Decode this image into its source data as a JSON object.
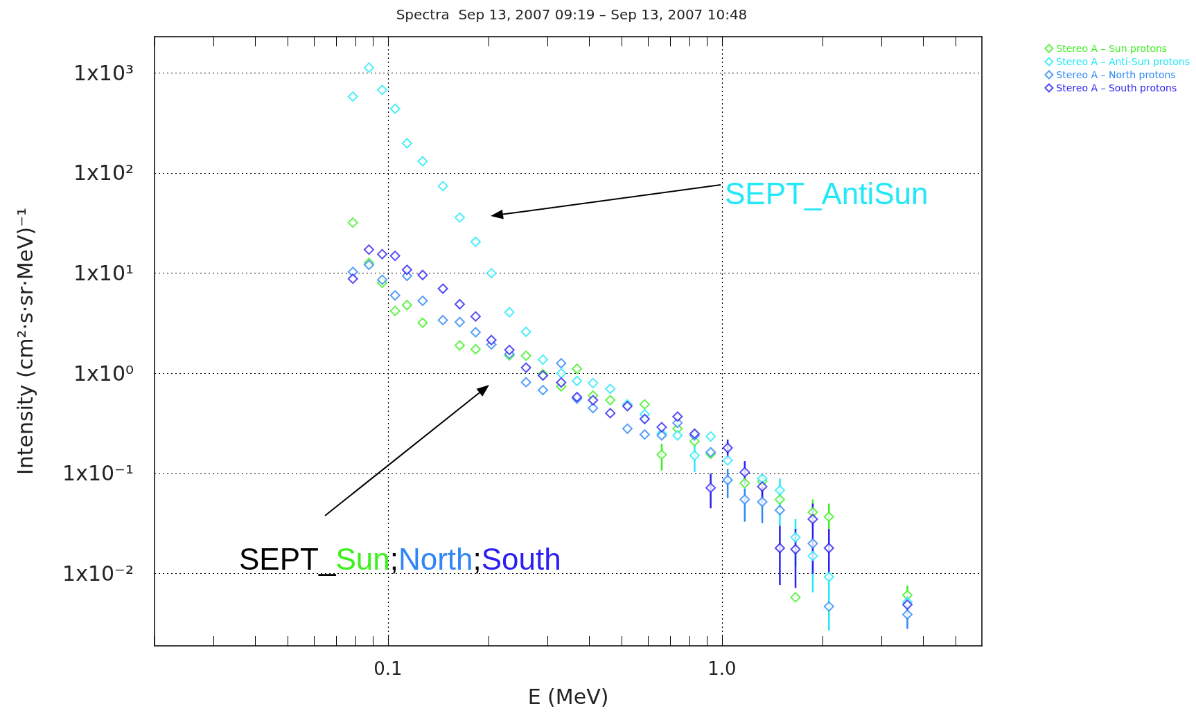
{
  "chart_data": {
    "type": "scatter",
    "title": "Spectra  Sep 13, 2007 09:19 – Sep 13, 2007 10:48",
    "xlabel": "E (MeV)",
    "ylabel": "Intensity (cm²·s·sr·MeV)⁻¹",
    "log": "xy",
    "x": [
      0.0785,
      0.0877,
      0.0961,
      0.105,
      0.114,
      0.127,
      0.146,
      0.164,
      0.183,
      0.204,
      0.231,
      0.259,
      0.291,
      0.33,
      0.368,
      0.411,
      0.463,
      0.521,
      0.587,
      0.66,
      0.736,
      0.828,
      0.925,
      1.04,
      1.17,
      1.32,
      1.49,
      1.66,
      1.87,
      2.09,
      3.59
    ],
    "series": [
      {
        "name": "Stereo A – Sun protons",
        "color": "#3cf01e",
        "values": [
          32,
          12.7,
          8.0,
          4.2,
          4.8,
          3.2,
          null,
          1.9,
          1.74,
          null,
          1.51,
          1.5,
          0.98,
          0.74,
          1.11,
          0.6,
          0.54,
          null,
          0.49,
          0.154,
          0.28,
          0.21,
          0.157,
          null,
          0.08,
          0.083,
          0.055,
          0.0058,
          0.041,
          0.037,
          0.0061
        ],
        "errors": [
          null,
          null,
          null,
          null,
          null,
          null,
          null,
          null,
          null,
          null,
          null,
          null,
          null,
          null,
          null,
          null,
          null,
          null,
          null,
          [
            0.107,
            0.198
          ],
          null,
          null,
          null,
          null,
          null,
          null,
          null,
          null,
          [
            0.03,
            0.055
          ],
          [
            0.028,
            0.05
          ],
          [
            0.005,
            0.0076
          ]
        ]
      },
      {
        "name": "Stereo A – Anti-Sun protons",
        "color": "#22e8f8",
        "values": [
          580,
          1130,
          677,
          439,
          198,
          131,
          74,
          36,
          20.6,
          10,
          4.08,
          2.6,
          1.37,
          1.0,
          0.84,
          0.8,
          0.7,
          0.49,
          0.39,
          0.25,
          0.24,
          0.151,
          0.234,
          0.135,
          null,
          0.089,
          0.068,
          0.023,
          0.015,
          0.0093,
          0.0052
        ],
        "errors": [
          null,
          null,
          null,
          null,
          null,
          null,
          null,
          null,
          null,
          null,
          null,
          null,
          null,
          null,
          null,
          null,
          null,
          null,
          null,
          null,
          null,
          [
            0.103,
            0.198
          ],
          null,
          null,
          null,
          null,
          [
            0.03,
            0.089
          ],
          [
            0.012,
            0.035
          ],
          [
            0.0065,
            0.022
          ],
          [
            0.0027,
            0.011
          ],
          null
        ]
      },
      {
        "name": "Stereo A – North protons",
        "color": "#2f86f6",
        "values": [
          10.3,
          12.1,
          8.6,
          6.0,
          9.4,
          5.3,
          3.4,
          3.25,
          2.57,
          1.94,
          1.56,
          0.815,
          0.68,
          1.26,
          0.56,
          0.45,
          null,
          0.28,
          0.245,
          0.24,
          0.32,
          0.24,
          0.163,
          0.086,
          0.055,
          0.052,
          0.043,
          null,
          0.02,
          0.0047,
          0.0039
        ],
        "errors": [
          null,
          null,
          null,
          null,
          null,
          null,
          null,
          null,
          null,
          null,
          null,
          null,
          null,
          null,
          null,
          null,
          null,
          null,
          null,
          null,
          null,
          null,
          null,
          [
            0.057,
            0.111
          ],
          [
            0.033,
            0.071
          ],
          [
            0.032,
            0.071
          ],
          null,
          null,
          null,
          null,
          [
            0.0028,
            0.0061
          ]
        ]
      },
      {
        "name": "Stereo A – South protons",
        "color": "#2a1ef0",
        "values": [
          8.8,
          17.2,
          15.5,
          14.9,
          10.8,
          9.6,
          7.0,
          4.9,
          3.7,
          2.15,
          1.71,
          1.14,
          0.95,
          0.81,
          0.58,
          0.54,
          0.4,
          0.47,
          0.35,
          0.29,
          0.37,
          0.25,
          0.072,
          0.18,
          0.103,
          0.074,
          0.018,
          0.0175,
          0.035,
          0.018,
          0.0049
        ],
        "errors": [
          null,
          null,
          null,
          null,
          null,
          null,
          null,
          null,
          null,
          null,
          null,
          null,
          null,
          null,
          null,
          null,
          null,
          null,
          null,
          null,
          null,
          null,
          [
            0.045,
            0.1
          ],
          [
            0.138,
            0.218
          ],
          [
            0.077,
            0.133
          ],
          [
            0.054,
            0.099
          ],
          [
            0.0077,
            0.03
          ],
          [
            0.0072,
            0.028
          ],
          [
            0.01,
            0.05
          ],
          [
            0.01,
            0.028
          ],
          null
        ]
      }
    ],
    "xlim": [
      0.02,
      6
    ],
    "ylim": [
      0.0019,
      2300
    ],
    "xticks": [
      {
        "value": 0.02,
        "label": null
      },
      {
        "value": 0.03,
        "label": null
      },
      {
        "value": 0.04,
        "label": null
      },
      {
        "value": 0.05,
        "label": null
      },
      {
        "value": 0.06,
        "label": null
      },
      {
        "value": 0.07,
        "label": null
      },
      {
        "value": 0.08,
        "label": null
      },
      {
        "value": 0.09,
        "label": null
      },
      {
        "value": 0.1,
        "label": "0.1"
      },
      {
        "value": 0.2,
        "label": null
      },
      {
        "value": 0.3,
        "label": null
      },
      {
        "value": 0.4,
        "label": null
      },
      {
        "value": 0.5,
        "label": null
      },
      {
        "value": 0.6,
        "label": null
      },
      {
        "value": 0.7,
        "label": null
      },
      {
        "value": 0.8,
        "label": null
      },
      {
        "value": 0.9,
        "label": null
      },
      {
        "value": 1,
        "label": "1.0"
      },
      {
        "value": 2,
        "label": null
      },
      {
        "value": 3,
        "label": null
      },
      {
        "value": 4,
        "label": null
      },
      {
        "value": 5,
        "label": null
      }
    ],
    "yticks": [
      {
        "value": 0.01,
        "label": "1x10⁻²"
      },
      {
        "value": 0.1,
        "label": "1x10⁻¹"
      },
      {
        "value": 1,
        "label": "1x10⁰"
      },
      {
        "value": 10,
        "label": "1x10¹"
      },
      {
        "value": 100,
        "label": "1x10²"
      },
      {
        "value": 1000,
        "label": "1x10³"
      }
    ],
    "grid": true,
    "legend": "top right",
    "marker": "diamond",
    "annotations": [
      "SEPT_AntiSun",
      "SEPT_Sun;North;South"
    ]
  }
}
